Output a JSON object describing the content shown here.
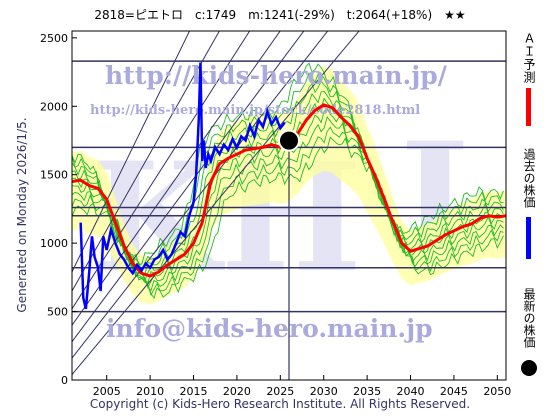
{
  "header": {
    "title": "2818=ピエトロ　c:1749　m:1241(-29%)　t:2064(+18%)　★★"
  },
  "generated_label": "Generated on Monday 2026/1/5.",
  "copyright": "Copyright (c) Kids-Hero Research Institute. All Rights Reserved.",
  "watermarks": {
    "url1": "http://kids-hero.main.jp/",
    "url2": "http://kids-hero.main.jp/stock/code2818.html",
    "email": "info@kids-hero.main.jp",
    "big": "KH",
    "big_right": "I"
  },
  "legend": {
    "forecast": "ＡＩ予測",
    "past": "過去の株価",
    "latest": "最新の株価"
  },
  "colors": {
    "forecast": "#ff0000",
    "past": "#0000ff",
    "latest": "#000000",
    "projections": "#22bb22",
    "band": "#ffff99",
    "trendlines": "#333366",
    "watermark": "#aaaadd"
  },
  "chart_data": {
    "type": "line",
    "xlim": [
      2001,
      2051
    ],
    "ylim": [
      0,
      2550
    ],
    "x_ticks": [
      2005,
      2010,
      2015,
      2020,
      2025,
      2030,
      2035,
      2040,
      2045,
      2050
    ],
    "y_ticks": [
      0,
      500,
      1000,
      1500,
      2000,
      2500
    ],
    "hlines": [
      2330,
      1700,
      1260,
      1200,
      820,
      500
    ],
    "vline": 2026,
    "current": {
      "x": 2026,
      "y": 1749
    },
    "series": [
      {
        "name": "過去の株価",
        "x": [
          2002,
          2002.3,
          2002.6,
          2003,
          2003.3,
          2003.6,
          2004,
          2004.3,
          2004.6,
          2005,
          2005.5,
          2006,
          2006.5,
          2007,
          2007.5,
          2008,
          2008.5,
          2009,
          2009.5,
          2010,
          2010.5,
          2011,
          2011.5,
          2012,
          2012.5,
          2013,
          2013.5,
          2014,
          2014.5,
          2015,
          2015.3,
          2015.6,
          2015.8,
          2016,
          2016.2,
          2016.4,
          2016.7,
          2017,
          2017.5,
          2018,
          2018.5,
          2019,
          2019.5,
          2020,
          2020.5,
          2021,
          2021.5,
          2022,
          2022.5,
          2023,
          2023.5,
          2024,
          2024.5,
          2025,
          2025.5
        ],
        "values": [
          1150,
          600,
          520,
          800,
          1050,
          900,
          820,
          650,
          1050,
          950,
          1100,
          1000,
          920,
          880,
          820,
          780,
          840,
          800,
          850,
          820,
          880,
          900,
          950,
          880,
          920,
          1000,
          1080,
          1050,
          1200,
          1300,
          1500,
          1900,
          2320,
          1600,
          1750,
          1550,
          1650,
          1600,
          1700,
          1650,
          1720,
          1680,
          1760,
          1700,
          1780,
          1750,
          1860,
          1780,
          1900,
          1850,
          1960,
          1870,
          1920,
          1840,
          1880
        ]
      },
      {
        "name": "ＡＩ予測",
        "x": [
          2001,
          2002,
          2003,
          2004,
          2005,
          2006,
          2007,
          2008,
          2009,
          2010,
          2011,
          2012,
          2013,
          2014,
          2015,
          2016,
          2017,
          2018,
          2019,
          2020,
          2021,
          2022,
          2023,
          2024,
          2025,
          2026,
          2027,
          2028,
          2029,
          2030,
          2031,
          2032,
          2033,
          2034,
          2035,
          2036,
          2037,
          2038,
          2039,
          2040,
          2041,
          2042,
          2043,
          2044,
          2045,
          2046,
          2047,
          2048,
          2049,
          2050,
          2051
        ],
        "values": [
          1450,
          1460,
          1420,
          1400,
          1320,
          1150,
          980,
          850,
          780,
          760,
          790,
          840,
          880,
          920,
          1000,
          1150,
          1450,
          1580,
          1620,
          1650,
          1680,
          1690,
          1700,
          1720,
          1700,
          1720,
          1800,
          1900,
          1970,
          2010,
          1990,
          1920,
          1860,
          1780,
          1620,
          1480,
          1320,
          1150,
          1000,
          940,
          960,
          980,
          1020,
          1060,
          1090,
          1120,
          1140,
          1180,
          1200,
          1190,
          1200
        ]
      }
    ]
  }
}
